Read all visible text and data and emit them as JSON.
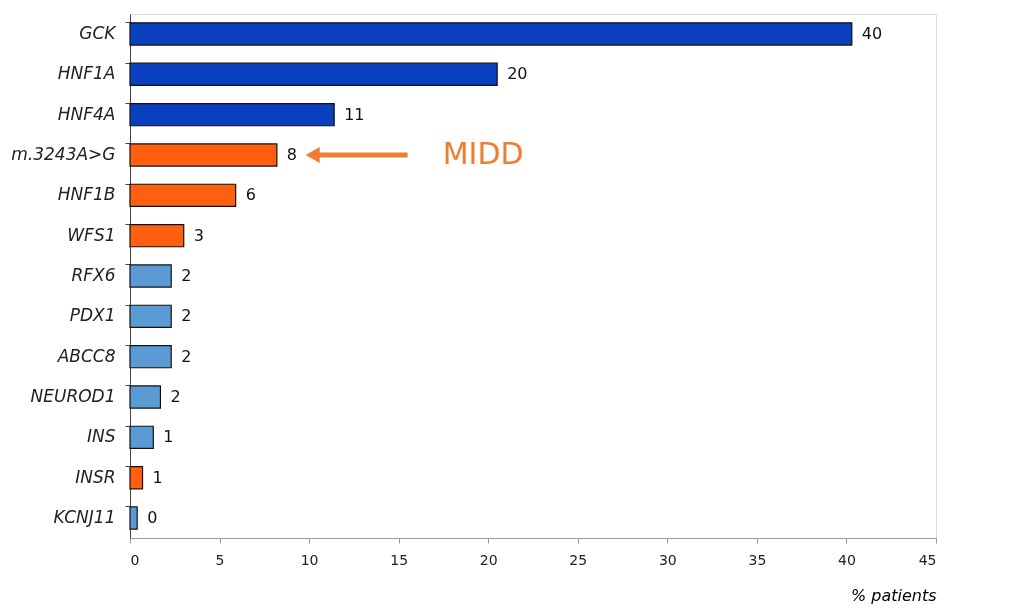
{
  "chart_data": {
    "type": "bar",
    "orientation": "horizontal",
    "xlabel": "% patients",
    "categories": [
      "GCK",
      "HNF1A",
      "HNF4A",
      "m.3243A>G",
      "HNF1B",
      "WFS1",
      "RFX6",
      "PDX1",
      "ABCC8",
      "NEUROD1",
      "INS",
      "INSR",
      "KCNJ11"
    ],
    "values": [
      40.3,
      20.5,
      11.4,
      8.2,
      5.9,
      3.0,
      2.3,
      2.3,
      2.3,
      1.7,
      1.3,
      0.7,
      0.4
    ],
    "colors": [
      "#0a3fbf",
      "#0a3fbf",
      "#0a3fbf",
      "#ff6010",
      "#ff6010",
      "#ff6010",
      "#5b9bd5",
      "#5b9bd5",
      "#5b9bd5",
      "#5b9bd5",
      "#5b9bd5",
      "#ff6010",
      "#5b9bd5"
    ],
    "value_labels": [
      "40",
      "20",
      "11",
      "8",
      "6",
      "3",
      "2",
      "2",
      "2",
      "2",
      "1",
      "1",
      "0"
    ],
    "xlim": [
      0,
      45
    ],
    "xticks": [
      0,
      5,
      10,
      15,
      20,
      25,
      30,
      35,
      40,
      45
    ],
    "grid": false,
    "annotations": [
      {
        "text": "MIDD",
        "x": 10.2,
        "y": "m.3243A>G"
      }
    ]
  }
}
